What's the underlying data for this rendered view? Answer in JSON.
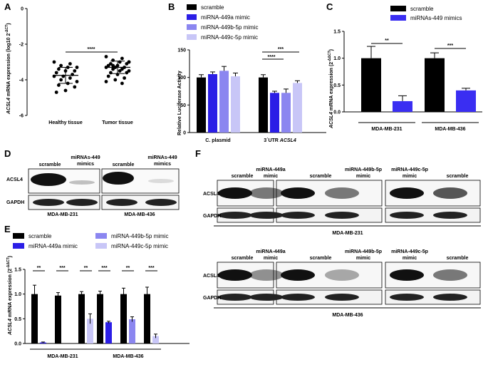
{
  "panels": {
    "A": {
      "letter": "A"
    },
    "B": {
      "letter": "B"
    },
    "C": {
      "letter": "C"
    },
    "D": {
      "letter": "D"
    },
    "E": {
      "letter": "E"
    },
    "F": {
      "letter": "F"
    }
  },
  "colors": {
    "scramble": "#000000",
    "m449a": "#2b1ee6",
    "m449b": "#8b86f0",
    "m449c": "#c8c6f7",
    "miRNAs449": "#3a2ef2"
  },
  "panelA": {
    "ylabel_prefix": "ACSL4",
    "ylabel_rest": " mRNA expression (log10 2",
    "ylabel_sup": "-ΔCT",
    "ylabel_end": ")",
    "significance": "****"
  },
  "panelB": {
    "ylabel": "Relative Luciferase Activity",
    "cat_labels": [
      "C. plasmid",
      "3´UTR"
    ],
    "cat2_italic": "ACSL4",
    "legend": [
      "scramble",
      "miRNA-449a mimic",
      "miRNA-449b-5p mimic",
      "miRNA-449c-5p mimic"
    ],
    "significance": [
      "****",
      "***"
    ]
  },
  "panelC": {
    "ylabel_prefix": "ACSL4",
    "ylabel_rest": " mRNA expression (2",
    "ylabel_sup": "-ΔΔCT",
    "ylabel_end": ")",
    "legend": [
      "scramble",
      "miRNAs-449 mimics"
    ],
    "significance": [
      "**",
      "***"
    ]
  },
  "panelD": {
    "col_labels": [
      "scramble",
      "miRNAs-449\nmimics",
      "scramble",
      "miRNAs-449\nmimics"
    ],
    "row_labels": [
      "ACSL4",
      "GAPDH"
    ],
    "cell_lines": [
      "MDA-MB-231",
      "MDA-MB-436"
    ]
  },
  "panelE": {
    "ylabel_prefix": "ACSL4",
    "ylabel_rest": " mRNA expression (2",
    "ylabel_sup": "-ΔΔCT",
    "ylabel_end": ")",
    "legend": [
      "scramble",
      "miRNA-449a mimic",
      "miRNA-449b-5p mimic",
      "miRNA-449c-5p mimic"
    ],
    "significance": [
      "**",
      "***",
      "**",
      "***",
      "**",
      "***"
    ]
  },
  "panelF": {
    "col_labels": [
      "scramble",
      "miRNA-449a\nmimic",
      "miRNA-449b-5p\nmimic",
      "scramble",
      "miRNA-449c-5p\nmimic"
    ],
    "row_labels": [
      "ACSL4",
      "GAPDH"
    ],
    "cell_lines": [
      "MDA-MB-231",
      "MDA-MB-436"
    ]
  },
  "chart_data": [
    {
      "panel": "A",
      "type": "scatter",
      "categories": [
        "Healthy tissue",
        "Tumor tissue"
      ],
      "ylim": [
        -6,
        0
      ],
      "yticks": [
        0,
        -2,
        -4,
        -6
      ],
      "series": [
        {
          "name": "Healthy tissue",
          "values": [
            -3.0,
            -3.1,
            -3.2,
            -3.3,
            -3.3,
            -3.4,
            -3.5,
            -3.5,
            -3.6,
            -3.7,
            -3.8,
            -3.8,
            -3.9,
            -4.0,
            -4.1,
            -4.2,
            -4.3,
            -4.4,
            -4.6,
            -4.7
          ]
        },
        {
          "name": "Tumor tissue",
          "values": [
            -2.7,
            -2.8,
            -2.9,
            -3.0,
            -3.0,
            -3.1,
            -3.1,
            -3.2,
            -3.2,
            -3.3,
            -3.3,
            -3.3,
            -3.4,
            -3.4,
            -3.5,
            -3.5,
            -3.6,
            -3.6,
            -3.7,
            -3.8,
            -3.9,
            -4.0,
            -4.1,
            -4.2,
            -3.2,
            -3.0
          ]
        }
      ],
      "means": [
        -3.75,
        -3.3
      ],
      "sd": [
        0.45,
        0.35
      ]
    },
    {
      "panel": "B",
      "type": "bar",
      "categories": [
        "C. plasmid",
        "3´UTR ACSL4"
      ],
      "ylim": [
        0,
        150
      ],
      "yticks": [
        0,
        50,
        100,
        150
      ],
      "series": [
        {
          "name": "scramble",
          "values": [
            100,
            100
          ],
          "err": [
            5,
            5
          ]
        },
        {
          "name": "miRNA-449a mimic",
          "values": [
            106,
            72
          ],
          "err": [
            4,
            3
          ]
        },
        {
          "name": "miRNA-449b-5p mimic",
          "values": [
            112,
            72
          ],
          "err": [
            8,
            7
          ]
        },
        {
          "name": "miRNA-449c-5p mimic",
          "values": [
            102,
            90
          ],
          "err": [
            6,
            4
          ]
        }
      ]
    },
    {
      "panel": "C",
      "type": "bar",
      "categories": [
        "MDA-MB-231",
        "MDA-MB-436"
      ],
      "ylim": [
        0,
        1.5
      ],
      "yticks": [
        0.0,
        0.5,
        1.0,
        1.5
      ],
      "series": [
        {
          "name": "scramble",
          "values": [
            1.0,
            1.0
          ],
          "err": [
            0.22,
            0.1
          ]
        },
        {
          "name": "miRNAs-449 mimics",
          "values": [
            0.2,
            0.4
          ],
          "err": [
            0.1,
            0.04
          ]
        }
      ]
    },
    {
      "panel": "E",
      "type": "bar",
      "categories": [
        "MDA-MB-231",
        "MDA-MB-436"
      ],
      "ylim": [
        0,
        1.5
      ],
      "yticks": [
        0.0,
        0.5,
        1.0,
        1.5
      ],
      "groups": [
        {
          "cell": "MDA-MB-231",
          "pairs": [
            {
              "name": "scramble",
              "value": 1.0,
              "err": 0.18
            },
            {
              "name": "miRNA-449a mimic",
              "value": 0.02,
              "err": 0.01
            },
            {
              "name": "scramble",
              "value": 0.97,
              "err": 0.06
            },
            {
              "name": "miRNA-449b-5p mimic",
              "value": 0.0,
              "err": 0.0
            },
            {
              "name": "scramble",
              "value": 1.0,
              "err": 0.05
            },
            {
              "name": "miRNA-449c-5p mimic",
              "value": 0.5,
              "err": 0.1
            }
          ]
        },
        {
          "cell": "MDA-MB-436",
          "pairs": [
            {
              "name": "scramble",
              "value": 1.0,
              "err": 0.06
            },
            {
              "name": "miRNA-449a mimic",
              "value": 0.43,
              "err": 0.02
            },
            {
              "name": "scramble",
              "value": 1.0,
              "err": 0.12
            },
            {
              "name": "miRNA-449b-5p mimic",
              "value": 0.49,
              "err": 0.05
            },
            {
              "name": "scramble",
              "value": 1.0,
              "err": 0.14
            },
            {
              "name": "miRNA-449c-5p mimic",
              "value": 0.15,
              "err": 0.04
            }
          ]
        }
      ]
    }
  ]
}
